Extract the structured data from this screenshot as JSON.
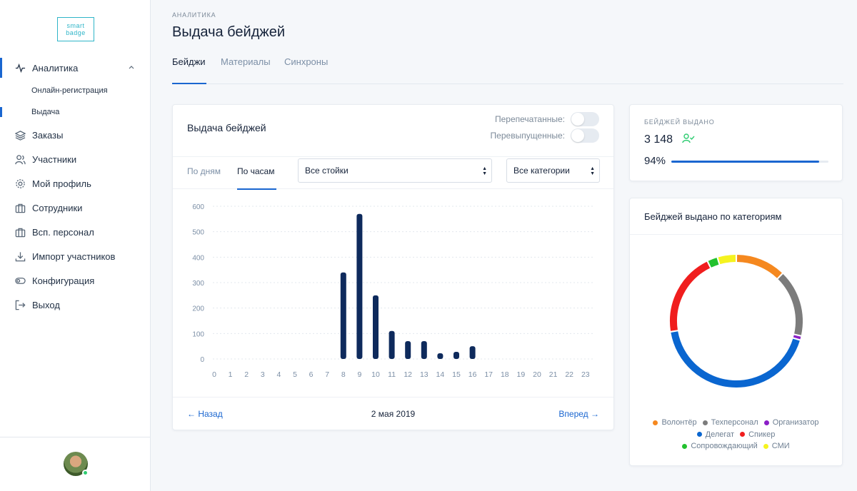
{
  "sidebar": {
    "logo": {
      "line1": "smart",
      "line2": "badge"
    },
    "items": [
      {
        "label": "Аналитика",
        "icon": "activity-icon"
      },
      {
        "label": "Онлайн-регистрация"
      },
      {
        "label": "Выдача"
      },
      {
        "label": "Заказы",
        "icon": "layers-icon"
      },
      {
        "label": "Участники",
        "icon": "users-icon"
      },
      {
        "label": "Мой профиль",
        "icon": "gear-icon"
      },
      {
        "label": "Сотрудники",
        "icon": "briefcase-icon"
      },
      {
        "label": "Всп. персонал",
        "icon": "briefcase-icon"
      },
      {
        "label": "Импорт участников",
        "icon": "download-icon"
      },
      {
        "label": "Конфигурация",
        "icon": "toggle-icon"
      },
      {
        "label": "Выход",
        "icon": "logout-icon"
      }
    ]
  },
  "header": {
    "breadcrumb": "АНАЛИТИКА",
    "title": "Выдача бейджей",
    "tabs": [
      "Бейджи",
      "Материалы",
      "Синхроны"
    ]
  },
  "main_card": {
    "title": "Выдача бейджей",
    "toggle_reprinted": "Перепечатанные:",
    "toggle_reissued": "Перевыпущенные:",
    "subtabs": [
      "По дням",
      "По часам"
    ],
    "select_stands": "Все стойки",
    "select_categories": "Все категории",
    "back": "← Назад",
    "date": "2 мая 2019",
    "forward": "Вперед →"
  },
  "stats": {
    "label": "БЕЙДЖЕЙ ВЫДАНО",
    "count": "3 148",
    "percent": "94%",
    "percent_value": 0.94
  },
  "donut_card": {
    "title": "Бейджей выдано по категориям"
  },
  "chart_data": [
    {
      "type": "bar",
      "categories": [
        "0",
        "1",
        "2",
        "3",
        "4",
        "5",
        "6",
        "7",
        "8",
        "9",
        "10",
        "11",
        "12",
        "13",
        "14",
        "15",
        "16",
        "17",
        "18",
        "19",
        "20",
        "21",
        "22",
        "23"
      ],
      "values": [
        0,
        0,
        0,
        0,
        0,
        0,
        0,
        0,
        340,
        570,
        250,
        110,
        70,
        70,
        20,
        28,
        50,
        0,
        0,
        0,
        0,
        0,
        0,
        0
      ],
      "yticks": [
        0,
        100,
        200,
        300,
        400,
        500,
        600
      ],
      "ylim": [
        0,
        600
      ],
      "grid": true,
      "color": "#0e2a5c"
    },
    {
      "type": "pie",
      "donut": true,
      "labels": [
        "Волонтёр",
        "Техперсонал",
        "Организатор",
        "Делегат",
        "Спикер",
        "Сопровождающий",
        "СМИ"
      ],
      "values": [
        12,
        16,
        1,
        42,
        20,
        2.5,
        4.5
      ],
      "colors": [
        "#f5881f",
        "#7c7c7c",
        "#8b1fc7",
        "#0a66d0",
        "#f01e1e",
        "#22c12e",
        "#f5f31f"
      ],
      "legend_rows": [
        [
          0,
          1,
          2
        ],
        [
          3,
          4
        ],
        [
          5,
          6
        ]
      ]
    }
  ]
}
